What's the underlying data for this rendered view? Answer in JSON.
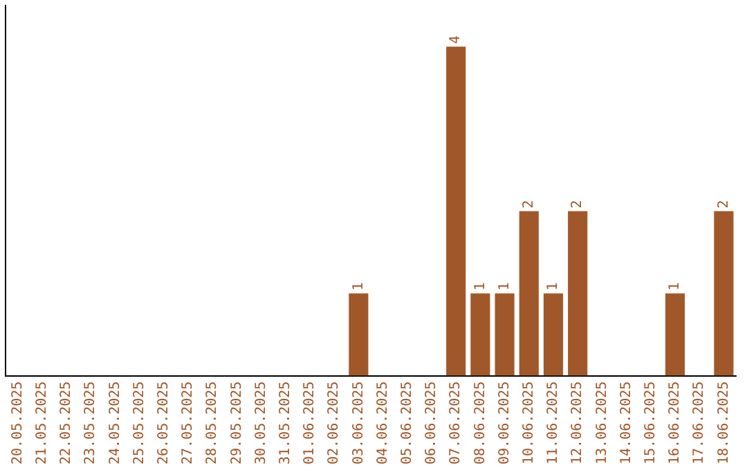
{
  "chart_data": {
    "type": "bar",
    "categories": [
      "20.05.2025",
      "21.05.2025",
      "22.05.2025",
      "23.05.2025",
      "24.05.2025",
      "25.05.2025",
      "26.05.2025",
      "27.05.2025",
      "28.05.2025",
      "29.05.2025",
      "30.05.2025",
      "31.05.2025",
      "01.06.2025",
      "02.06.2025",
      "03.06.2025",
      "04.06.2025",
      "05.06.2025",
      "06.06.2025",
      "07.06.2025",
      "08.06.2025",
      "09.06.2025",
      "10.06.2025",
      "11.06.2025",
      "12.06.2025",
      "13.06.2025",
      "14.06.2025",
      "15.06.2025",
      "16.06.2025",
      "17.06.2025",
      "18.06.2025"
    ],
    "values": [
      null,
      null,
      null,
      null,
      null,
      null,
      null,
      null,
      null,
      null,
      null,
      null,
      null,
      null,
      1,
      null,
      null,
      null,
      4,
      1,
      1,
      2,
      1,
      2,
      null,
      null,
      null,
      1,
      null,
      2
    ],
    "data_labels": true,
    "color": "#a0582a",
    "grid": false,
    "legend": false,
    "tick_labels": "x"
  }
}
